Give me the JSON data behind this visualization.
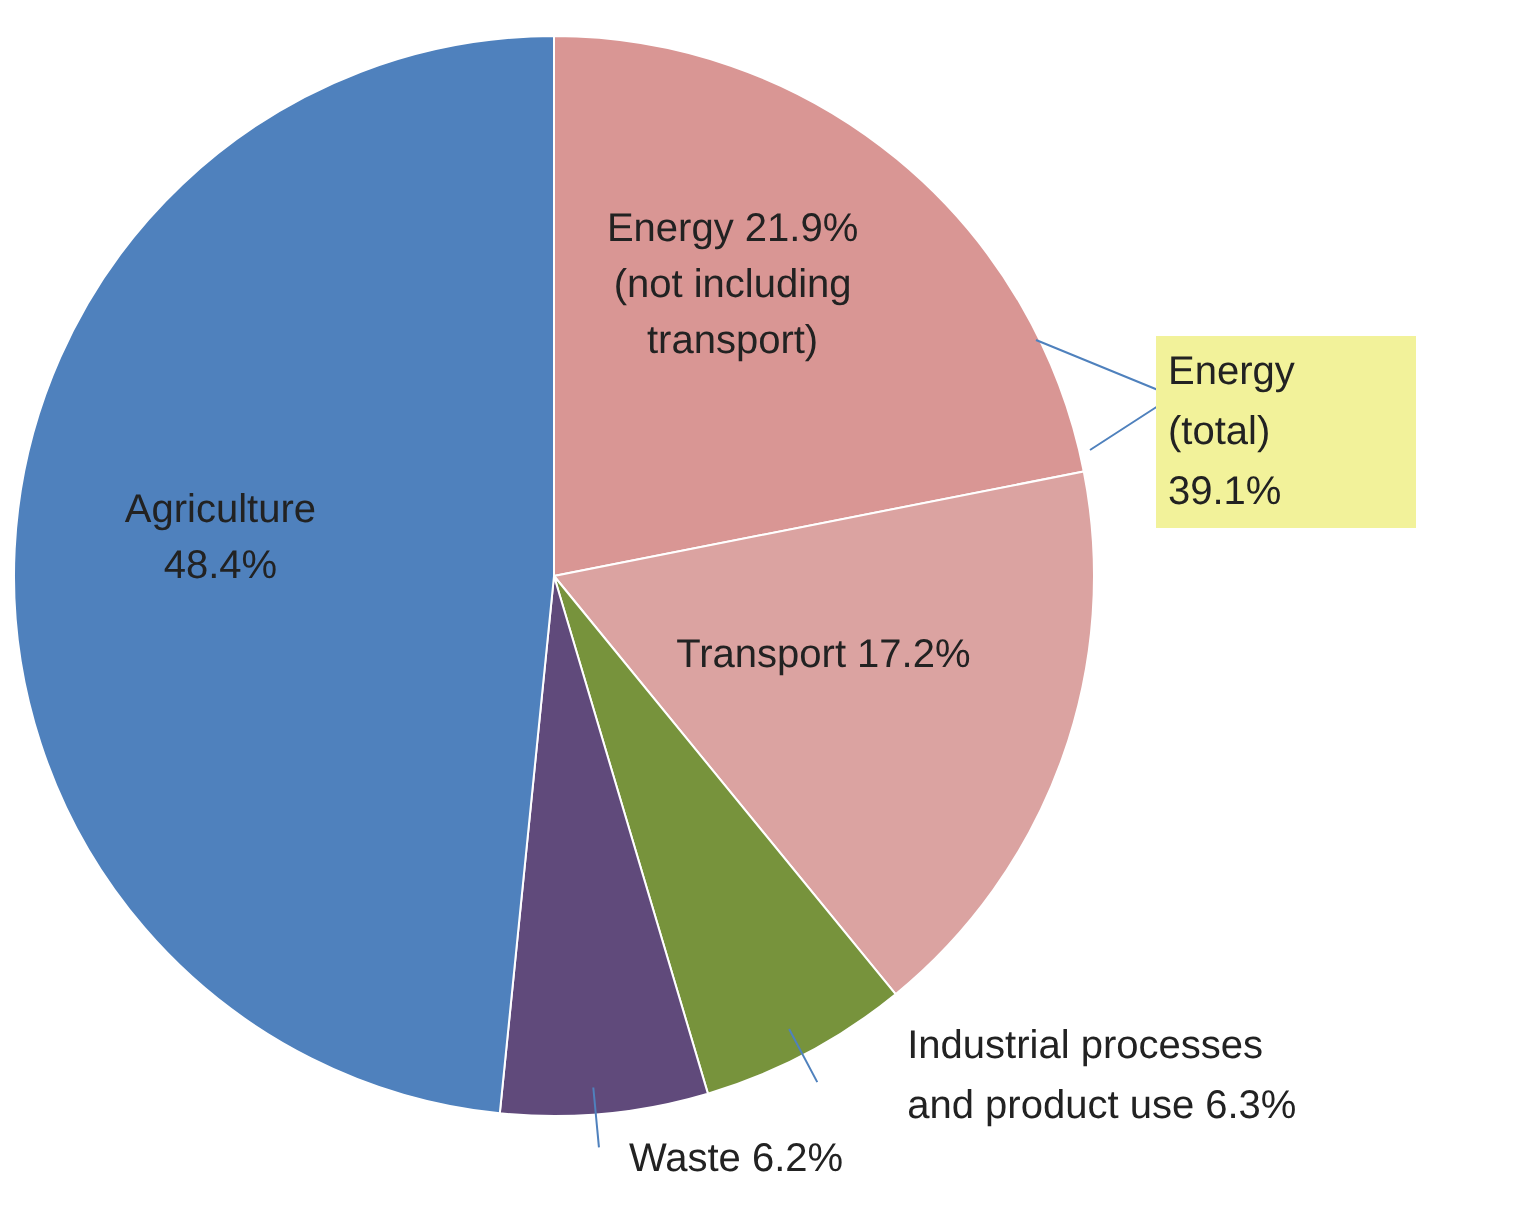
{
  "chart_data": {
    "type": "pie",
    "categories": [
      "Energy",
      "Transport",
      "Industrial processes and product use",
      "Waste",
      "Agriculture"
    ],
    "values": [
      21.9,
      17.2,
      6.3,
      6.2,
      48.4
    ],
    "value_labels": [
      "21.9%",
      "17.2%",
      "6.3%",
      "6.2%",
      "48.4%"
    ],
    "colors": [
      "#d99694",
      "#dba3a1",
      "#77933c",
      "#604a7b",
      "#4f81bd"
    ],
    "annotations": [
      "(not including transport)",
      "Energy (total) 39.1%"
    ]
  }
}
